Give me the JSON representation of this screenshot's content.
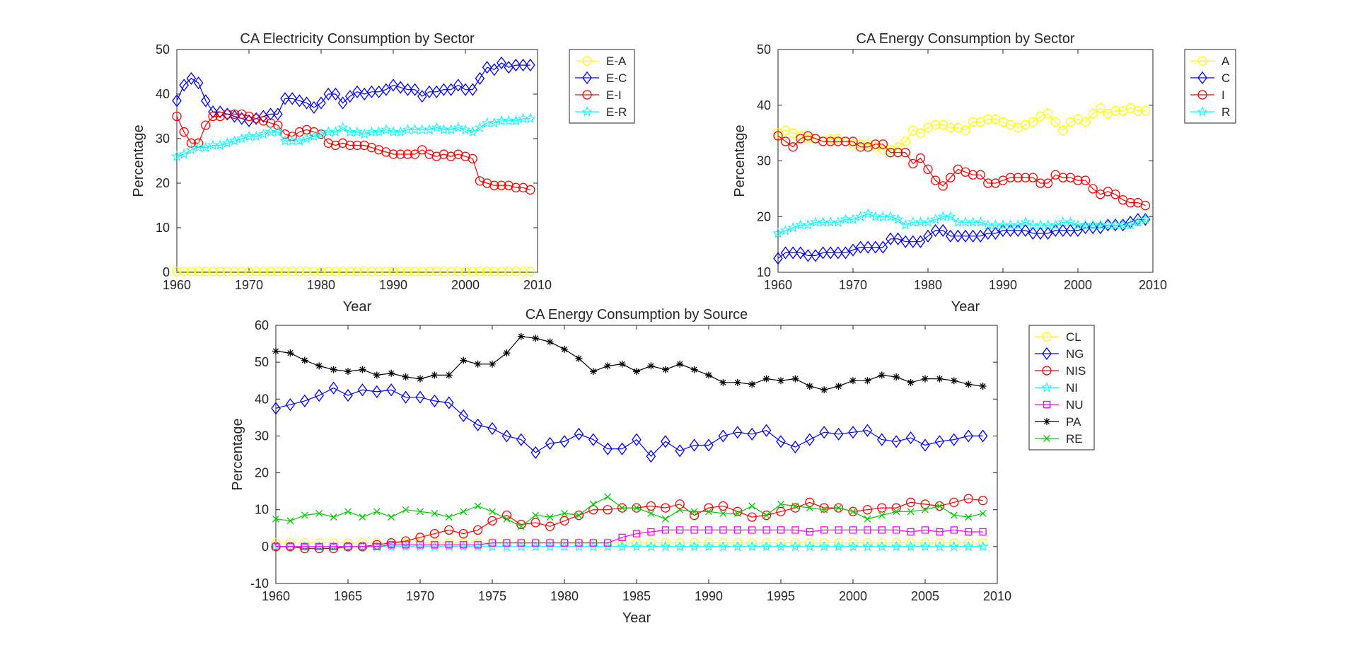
{
  "figure": {
    "background": "#ffffff",
    "axis_color": "#262626"
  },
  "chart_data": [
    {
      "id": "elec",
      "type": "line",
      "title": "CA Electricity Consumption by Sector",
      "xlabel": "Year",
      "ylabel": "Percentage",
      "xlim": [
        1960,
        2010
      ],
      "ylim": [
        0,
        50
      ],
      "xticks": [
        1960,
        1970,
        1980,
        1990,
        2000,
        2010
      ],
      "yticks": [
        0,
        10,
        20,
        30,
        40,
        50
      ],
      "legend_position": "outside-right-top",
      "x": [
        1960,
        1961,
        1962,
        1963,
        1964,
        1965,
        1966,
        1967,
        1968,
        1969,
        1970,
        1971,
        1972,
        1973,
        1974,
        1975,
        1976,
        1977,
        1978,
        1979,
        1980,
        1981,
        1982,
        1983,
        1984,
        1985,
        1986,
        1987,
        1988,
        1989,
        1990,
        1991,
        1992,
        1993,
        1994,
        1995,
        1996,
        1997,
        1998,
        1999,
        2000,
        2001,
        2002,
        2003,
        2004,
        2005,
        2006,
        2007,
        2008,
        2009
      ],
      "series": [
        {
          "name": "E-A",
          "color": "#ffff00",
          "marker": "circle",
          "values": [
            0.2,
            0.2,
            0.2,
            0.2,
            0.2,
            0.2,
            0.2,
            0.2,
            0.2,
            0.2,
            0.2,
            0.2,
            0.2,
            0.2,
            0.2,
            0.2,
            0.2,
            0.2,
            0.2,
            0.2,
            0.2,
            0.2,
            0.2,
            0.2,
            0.2,
            0.2,
            0.2,
            0.2,
            0.2,
            0.2,
            0.2,
            0.2,
            0.2,
            0.2,
            0.2,
            0.2,
            0.2,
            0.2,
            0.2,
            0.2,
            0.2,
            0.2,
            0.2,
            0.2,
            0.2,
            0.2,
            0.2,
            0.2,
            0.2,
            0.2
          ]
        },
        {
          "name": "E-C",
          "color": "#0000ff",
          "marker": "diamond",
          "values": [
            38.5,
            42.0,
            43.5,
            42.5,
            38.5,
            36.0,
            36.0,
            35.5,
            35.0,
            34.5,
            34.0,
            34.5,
            35.0,
            35.5,
            35.5,
            39.0,
            39.0,
            38.5,
            38.0,
            37.0,
            38.0,
            40.0,
            40.0,
            38.0,
            39.5,
            40.5,
            40.0,
            40.5,
            40.5,
            41.0,
            42.0,
            41.5,
            41.0,
            41.0,
            39.5,
            40.5,
            40.5,
            41.0,
            41.0,
            42.0,
            41.0,
            41.0,
            43.5,
            46.0,
            45.5,
            47.0,
            46.0,
            46.5,
            46.5,
            46.5
          ]
        },
        {
          "name": "E-I",
          "color": "#ff0000",
          "marker": "circle",
          "values": [
            35.0,
            31.5,
            29.0,
            29.0,
            33.0,
            35.0,
            35.0,
            35.5,
            35.5,
            35.5,
            35.0,
            34.5,
            34.0,
            33.5,
            33.0,
            31.0,
            30.5,
            31.5,
            32.0,
            31.5,
            31.0,
            29.0,
            28.5,
            29.0,
            28.5,
            28.5,
            28.5,
            28.0,
            27.5,
            27.0,
            26.5,
            26.5,
            26.5,
            26.5,
            27.5,
            26.5,
            26.0,
            26.5,
            26.0,
            26.5,
            26.0,
            25.5,
            20.5,
            20.0,
            19.5,
            19.5,
            19.5,
            19.0,
            19.0,
            18.5
          ]
        },
        {
          "name": "E-R",
          "color": "#00ffff",
          "marker": "star",
          "values": [
            26.0,
            26.5,
            27.5,
            28.0,
            28.0,
            28.5,
            28.5,
            29.0,
            29.5,
            30.0,
            30.5,
            30.5,
            31.0,
            31.5,
            31.5,
            29.5,
            29.5,
            29.5,
            30.0,
            30.5,
            31.0,
            31.5,
            31.5,
            32.5,
            31.5,
            31.5,
            31.0,
            31.5,
            31.5,
            32.0,
            31.5,
            31.5,
            32.0,
            32.0,
            32.0,
            32.0,
            32.5,
            32.0,
            32.0,
            32.5,
            32.0,
            31.5,
            32.5,
            33.5,
            33.5,
            34.0,
            34.0,
            34.0,
            34.5,
            34.5
          ]
        }
      ]
    },
    {
      "id": "energy-sector",
      "type": "line",
      "title": "CA Energy Consumption by Sector",
      "xlabel": "Year",
      "ylabel": "Percentage",
      "xlim": [
        1960,
        2010
      ],
      "ylim": [
        10,
        50
      ],
      "xticks": [
        1960,
        1970,
        1980,
        1990,
        2000,
        2010
      ],
      "yticks": [
        10,
        20,
        30,
        40,
        50
      ],
      "legend_position": "outside-right-top",
      "x": [
        1960,
        1961,
        1962,
        1963,
        1964,
        1965,
        1966,
        1967,
        1968,
        1969,
        1970,
        1971,
        1972,
        1973,
        1974,
        1975,
        1976,
        1977,
        1978,
        1979,
        1980,
        1981,
        1982,
        1983,
        1984,
        1985,
        1986,
        1987,
        1988,
        1989,
        1990,
        1991,
        1992,
        1993,
        1994,
        1995,
        1996,
        1997,
        1998,
        1999,
        2000,
        2001,
        2002,
        2003,
        2004,
        2005,
        2006,
        2007,
        2008,
        2009
      ],
      "series": [
        {
          "name": "A",
          "color": "#ffff00",
          "marker": "circle",
          "values": [
            35.0,
            35.5,
            35.0,
            34.5,
            34.0,
            34.0,
            33.5,
            34.0,
            34.0,
            33.5,
            33.0,
            33.0,
            33.0,
            32.5,
            32.0,
            32.0,
            32.5,
            33.5,
            35.5,
            35.0,
            36.0,
            36.5,
            36.5,
            36.0,
            36.0,
            35.5,
            37.0,
            37.0,
            37.5,
            37.5,
            37.0,
            36.5,
            36.0,
            36.5,
            37.0,
            38.0,
            38.5,
            37.0,
            35.5,
            37.0,
            37.5,
            37.0,
            38.5,
            39.5,
            38.5,
            39.0,
            39.0,
            39.5,
            39.0,
            39.0
          ]
        },
        {
          "name": "C",
          "color": "#0000ff",
          "marker": "diamond",
          "values": [
            12.5,
            13.5,
            13.5,
            13.5,
            13.0,
            13.0,
            13.5,
            13.5,
            13.5,
            13.5,
            14.0,
            14.5,
            14.5,
            14.5,
            14.5,
            16.0,
            16.0,
            15.5,
            15.5,
            15.5,
            16.5,
            17.5,
            17.5,
            16.5,
            16.5,
            16.5,
            16.5,
            16.5,
            17.0,
            17.0,
            17.5,
            17.5,
            17.5,
            17.5,
            17.0,
            17.0,
            17.0,
            17.5,
            17.5,
            17.5,
            17.5,
            18.0,
            18.0,
            18.0,
            18.5,
            18.5,
            18.5,
            19.0,
            19.5,
            19.5
          ]
        },
        {
          "name": "I",
          "color": "#ff0000",
          "marker": "circle",
          "values": [
            34.5,
            33.5,
            32.5,
            34.0,
            34.5,
            34.0,
            33.5,
            33.5,
            33.5,
            33.5,
            33.5,
            32.5,
            32.5,
            33.0,
            33.0,
            31.5,
            31.5,
            31.5,
            29.5,
            30.5,
            28.5,
            26.5,
            25.5,
            27.0,
            28.5,
            28.0,
            27.5,
            27.5,
            26.0,
            26.0,
            26.5,
            27.0,
            27.0,
            27.0,
            27.0,
            26.0,
            26.0,
            27.5,
            27.0,
            27.0,
            26.5,
            26.5,
            25.0,
            24.0,
            24.5,
            24.0,
            23.0,
            22.5,
            22.5,
            22.0
          ]
        },
        {
          "name": "R",
          "color": "#00ffff",
          "marker": "star",
          "values": [
            17.0,
            17.5,
            18.0,
            18.5,
            18.5,
            19.0,
            19.0,
            19.0,
            19.0,
            19.5,
            19.5,
            20.0,
            20.5,
            20.0,
            20.0,
            20.0,
            19.5,
            18.5,
            19.0,
            19.0,
            19.0,
            19.5,
            20.0,
            20.0,
            19.0,
            19.0,
            19.0,
            19.0,
            18.5,
            18.5,
            18.5,
            18.5,
            18.5,
            19.0,
            18.5,
            18.5,
            18.5,
            18.5,
            19.0,
            19.0,
            18.5,
            18.5,
            18.5,
            18.5,
            18.5,
            18.5,
            18.5,
            18.5,
            19.0,
            19.5
          ]
        }
      ]
    },
    {
      "id": "energy-source",
      "type": "line",
      "title": "CA Energy Consumption by Source",
      "xlabel": "Year",
      "ylabel": "Percentage",
      "xlim": [
        1960,
        2010
      ],
      "ylim": [
        -10,
        60
      ],
      "xticks": [
        1960,
        1965,
        1970,
        1975,
        1980,
        1985,
        1990,
        1995,
        2000,
        2005,
        2010
      ],
      "yticks": [
        -10,
        0,
        10,
        20,
        30,
        40,
        50,
        60
      ],
      "legend_position": "outside-right-top",
      "x": [
        1960,
        1961,
        1962,
        1963,
        1964,
        1965,
        1966,
        1967,
        1968,
        1969,
        1970,
        1971,
        1972,
        1973,
        1974,
        1975,
        1976,
        1977,
        1978,
        1979,
        1980,
        1981,
        1982,
        1983,
        1984,
        1985,
        1986,
        1987,
        1988,
        1989,
        1990,
        1991,
        1992,
        1993,
        1994,
        1995,
        1996,
        1997,
        1998,
        1999,
        2000,
        2001,
        2002,
        2003,
        2004,
        2005,
        2006,
        2007,
        2008,
        2009
      ],
      "series": [
        {
          "name": "CL",
          "color": "#ffff00",
          "marker": "circle",
          "values": [
            1.0,
            1.0,
            1.0,
            1.0,
            1.0,
            1.0,
            1.0,
            1.0,
            1.0,
            1.0,
            1.0,
            1.0,
            1.0,
            1.0,
            1.0,
            1.0,
            1.0,
            1.0,
            1.0,
            1.0,
            1.0,
            1.0,
            1.0,
            1.0,
            1.0,
            1.0,
            1.0,
            1.0,
            1.0,
            1.0,
            1.0,
            1.0,
            1.0,
            1.0,
            1.0,
            1.0,
            1.0,
            1.0,
            1.0,
            1.0,
            1.0,
            1.0,
            1.0,
            1.0,
            1.0,
            1.0,
            1.0,
            1.0,
            1.0,
            1.0
          ]
        },
        {
          "name": "NG",
          "color": "#0000ff",
          "marker": "diamond",
          "values": [
            37.5,
            38.5,
            39.5,
            41.0,
            43.0,
            41.0,
            42.5,
            42.0,
            42.5,
            40.5,
            40.5,
            39.5,
            39.0,
            35.5,
            33.0,
            32.0,
            30.0,
            29.0,
            25.5,
            28.0,
            28.5,
            30.5,
            29.0,
            26.5,
            26.5,
            29.0,
            24.5,
            28.5,
            26.0,
            27.5,
            27.5,
            30.0,
            31.0,
            30.5,
            31.5,
            28.5,
            27.0,
            29.0,
            31.0,
            30.5,
            31.0,
            31.5,
            29.0,
            28.5,
            29.5,
            27.5,
            28.5,
            29.0,
            30.0,
            30.0
          ]
        },
        {
          "name": "NIS",
          "color": "#ff0000",
          "marker": "circle",
          "values": [
            0.0,
            0.0,
            -0.5,
            -0.5,
            -0.5,
            0.0,
            0.0,
            0.5,
            1.0,
            1.5,
            2.5,
            3.5,
            4.5,
            3.5,
            4.5,
            7.0,
            8.5,
            6.0,
            6.5,
            5.5,
            7.0,
            8.5,
            10.0,
            10.0,
            10.5,
            10.5,
            11.0,
            10.5,
            11.5,
            8.5,
            10.5,
            11.0,
            9.5,
            8.0,
            8.5,
            9.5,
            10.5,
            12.0,
            10.5,
            10.5,
            9.5,
            10.0,
            10.5,
            10.5,
            12.0,
            11.5,
            11.0,
            12.0,
            13.0,
            12.5
          ]
        },
        {
          "name": "NI",
          "color": "#00ffff",
          "marker": "star",
          "values": [
            0.0,
            0.0,
            0.0,
            0.0,
            0.0,
            0.0,
            0.0,
            0.0,
            0.0,
            0.0,
            0.0,
            0.0,
            0.0,
            0.0,
            0.0,
            0.0,
            0.0,
            0.0,
            0.0,
            0.0,
            0.0,
            0.0,
            0.0,
            0.0,
            0.0,
            0.0,
            0.0,
            0.0,
            0.0,
            0.0,
            0.0,
            0.0,
            0.0,
            0.0,
            0.0,
            0.0,
            0.0,
            0.0,
            0.0,
            0.0,
            0.0,
            0.0,
            0.0,
            0.0,
            0.0,
            0.0,
            0.0,
            0.0,
            0.0,
            0.0
          ]
        },
        {
          "name": "NU",
          "color": "#ff00ff",
          "marker": "square",
          "values": [
            0.0,
            0.0,
            0.0,
            0.0,
            0.0,
            0.0,
            0.0,
            0.0,
            0.5,
            0.5,
            0.5,
            0.5,
            0.5,
            0.5,
            0.5,
            1.0,
            1.0,
            1.0,
            1.0,
            1.0,
            1.0,
            1.0,
            1.0,
            1.0,
            2.5,
            3.5,
            4.0,
            4.5,
            4.5,
            4.5,
            4.5,
            4.5,
            4.5,
            4.5,
            4.5,
            4.5,
            4.5,
            4.0,
            4.5,
            4.5,
            4.5,
            4.5,
            4.5,
            4.5,
            4.0,
            4.5,
            4.0,
            4.5,
            4.0,
            4.0
          ]
        },
        {
          "name": "PA",
          "color": "#000000",
          "marker": "asterisk",
          "values": [
            53.0,
            52.5,
            50.5,
            49.0,
            48.0,
            47.5,
            48.0,
            46.5,
            47.0,
            46.0,
            45.5,
            46.5,
            46.5,
            50.5,
            49.5,
            49.5,
            52.5,
            57.0,
            56.5,
            55.5,
            53.5,
            51.0,
            47.5,
            49.0,
            49.5,
            47.5,
            49.0,
            48.0,
            49.5,
            48.0,
            46.5,
            44.5,
            44.5,
            44.0,
            45.5,
            45.0,
            45.5,
            43.5,
            42.5,
            43.5,
            45.0,
            45.0,
            46.5,
            46.0,
            44.5,
            45.5,
            45.5,
            45.0,
            44.0,
            43.5
          ]
        },
        {
          "name": "RE",
          "color": "#00cc00",
          "marker": "x",
          "values": [
            7.5,
            7.0,
            8.5,
            9.0,
            8.0,
            9.5,
            8.0,
            9.5,
            8.0,
            10.0,
            9.5,
            9.0,
            8.0,
            9.5,
            11.0,
            9.5,
            7.5,
            5.5,
            8.5,
            8.0,
            9.0,
            8.5,
            11.5,
            13.5,
            10.5,
            10.5,
            9.0,
            7.5,
            10.0,
            9.5,
            9.5,
            9.0,
            9.0,
            11.0,
            8.5,
            11.5,
            11.0,
            10.5,
            10.0,
            10.5,
            9.5,
            7.5,
            8.5,
            9.5,
            9.5,
            10.0,
            11.0,
            8.5,
            8.0,
            9.0
          ]
        }
      ]
    }
  ]
}
